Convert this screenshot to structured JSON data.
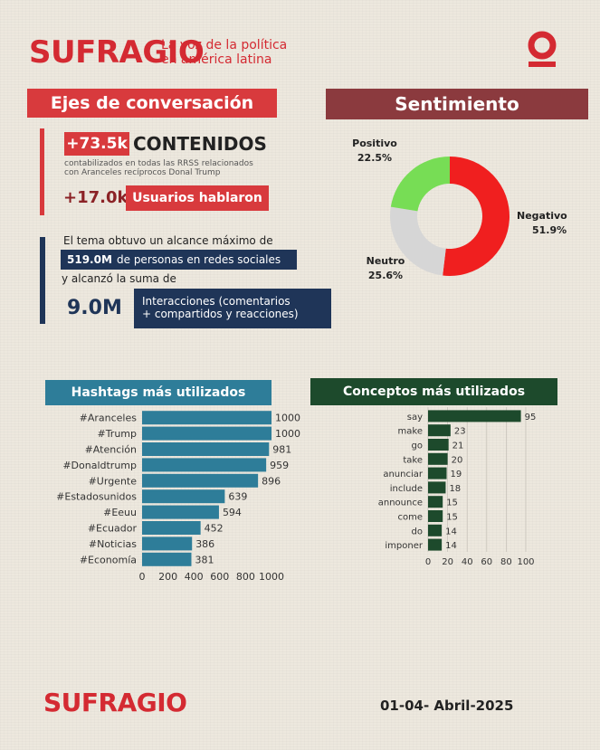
{
  "header": {
    "brand": "SUFRAGIO",
    "tagline_line1": "La voz de la política",
    "tagline_line2": "en américa latina"
  },
  "ejes": {
    "title": "Ejes de conversación",
    "contenidos_value": "+73.5k",
    "contenidos_label": "CONTENIDOS",
    "contenidos_note_line1": "contabilizados en todas las RRSS relacionados",
    "contenidos_note_line2": "con Aranceles recíprocos Donal Trump",
    "usuarios_value": "+17.0k",
    "usuarios_label": "Usuarios hablaron",
    "alcance_text1": "El tema obtuvo un alcance máximo de",
    "alcance_value": "519.0M",
    "alcance_text2": "de personas en redes sociales",
    "alcance_text3": "y alcanzó la suma de",
    "interacciones_value": "9.0M",
    "interacciones_line1": "Interacciones (comentarios",
    "interacciones_line2": "+ compartidos y reacciones)"
  },
  "sentimiento": {
    "title": "Sentimiento"
  },
  "hashtags": {
    "title": "Hashtags más utilizados"
  },
  "conceptos": {
    "title": "Conceptos más utilizados"
  },
  "footer": {
    "brand": "SUFRAGIO",
    "date": "01-04- Abril-2025"
  },
  "colors": {
    "brand_red": "#d42a32",
    "negativo": "#f01f1f",
    "neutro": "#d6d6d6",
    "positivo": "#77dd55",
    "hashtag_bar": "#2e7d99",
    "concepto_bar": "#1d4a2c"
  },
  "chart_data": [
    {
      "type": "pie",
      "variant": "donut",
      "title": "Sentimiento",
      "categories": [
        "Negativo",
        "Neutro",
        "Positivo"
      ],
      "values": [
        51.9,
        25.6,
        22.5
      ],
      "labels": [
        "51.9%",
        "25.6%",
        "22.5%"
      ]
    },
    {
      "type": "bar",
      "orientation": "horizontal",
      "title": "Hashtags más utilizados",
      "categories": [
        "#Aranceles",
        "#Trump",
        "#Atención",
        "#Donaldtrump",
        "#Urgente",
        "#Estadosunidos",
        "#Eeuu",
        "#Ecuador",
        "#Noticias",
        "#Economía"
      ],
      "values": [
        1000,
        1000,
        981,
        959,
        896,
        639,
        594,
        452,
        386,
        381
      ],
      "xlim": [
        0,
        1000
      ],
      "xticks": [
        0,
        200,
        400,
        600,
        800,
        1000
      ]
    },
    {
      "type": "bar",
      "orientation": "horizontal",
      "title": "Conceptos más utilizados",
      "categories": [
        "say",
        "make",
        "go",
        "take",
        "anunciar",
        "include",
        "announce",
        "come",
        "do",
        "imponer"
      ],
      "values": [
        95,
        23,
        21,
        20,
        19,
        18,
        15,
        15,
        14,
        14
      ],
      "xlim": [
        0,
        100
      ],
      "xticks": [
        0,
        20,
        40,
        60,
        80,
        100
      ],
      "grid": true
    }
  ]
}
